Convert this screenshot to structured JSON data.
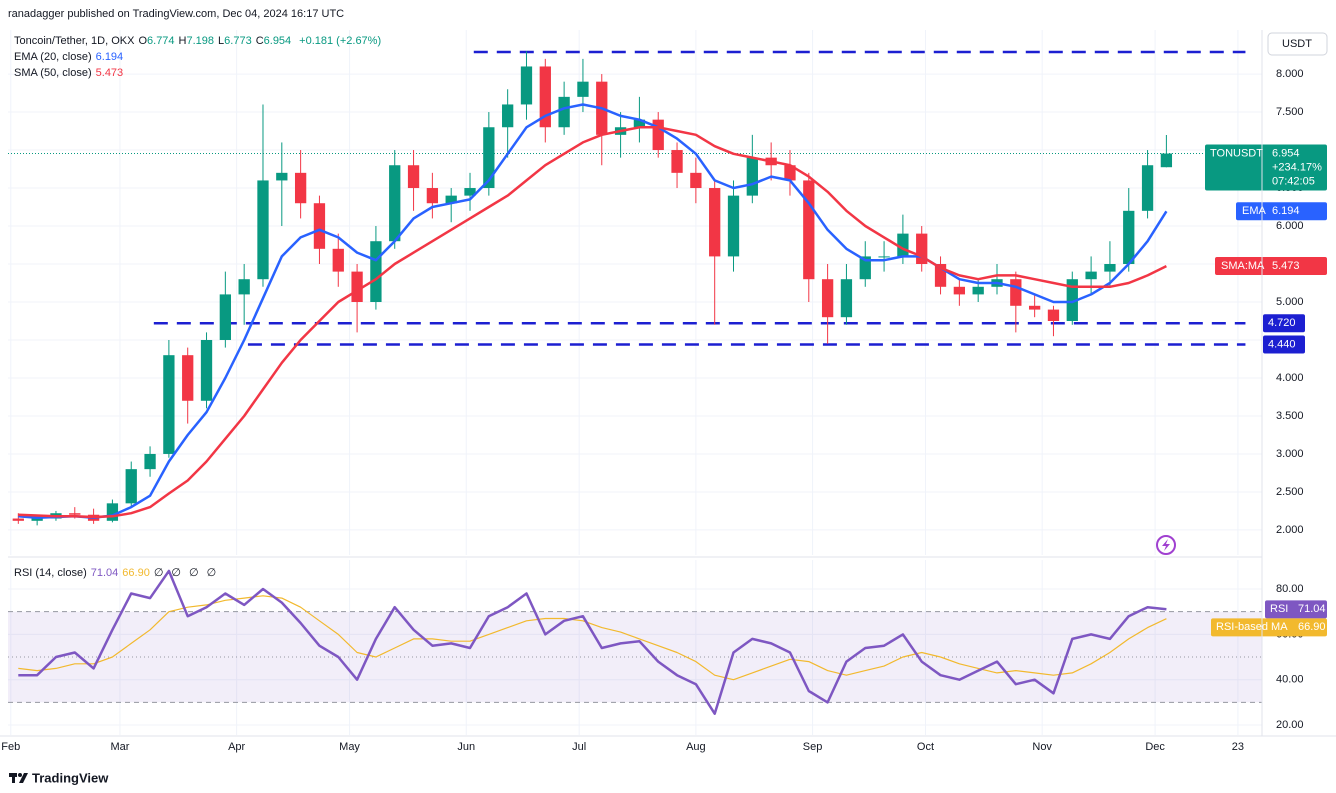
{
  "header": {
    "published": "ranadagger published on TradingView.com, Dec 04, 2024 16:17 UTC",
    "brand": "TradingView"
  },
  "chart_data": [
    {
      "type": "candlestick",
      "title": "Toncoin/Tether, 1D, OKX",
      "currency": "USDT",
      "ohlc_legend": [
        {
          "key": "O",
          "value": "6.774"
        },
        {
          "key": "H",
          "value": "7.198"
        },
        {
          "key": "L",
          "value": "6.773"
        },
        {
          "key": "C",
          "value": "6.954"
        }
      ],
      "change": "+0.181 (+2.67%)",
      "x": [
        2,
        7,
        12,
        17,
        22,
        27,
        32,
        37,
        42,
        47,
        52,
        57,
        62,
        67,
        72,
        77,
        82,
        87,
        92,
        97,
        102,
        107,
        112,
        117,
        122,
        127,
        132,
        137,
        142,
        147,
        152,
        157,
        162,
        167,
        172,
        177,
        182,
        187,
        192,
        197,
        202,
        207,
        212,
        217,
        222,
        227,
        232,
        237,
        242,
        247,
        252,
        257,
        262,
        267,
        272,
        277,
        282,
        287,
        292,
        297,
        302,
        307
      ],
      "open": [
        2.15,
        2.12,
        2.15,
        2.22,
        2.2,
        2.12,
        2.35,
        2.8,
        3.0,
        4.3,
        3.7,
        4.5,
        5.1,
        5.3,
        6.6,
        6.7,
        6.3,
        5.7,
        5.4,
        5.0,
        5.8,
        6.8,
        6.5,
        6.3,
        6.4,
        6.5,
        7.3,
        7.6,
        8.1,
        7.3,
        7.7,
        7.9,
        7.2,
        7.3,
        7.4,
        7.0,
        6.7,
        6.5,
        5.6,
        6.4,
        6.9,
        6.8,
        6.6,
        5.3,
        4.8,
        5.3,
        5.6,
        5.6,
        5.9,
        5.5,
        5.2,
        5.1,
        5.2,
        5.3,
        4.95,
        4.9,
        4.75,
        5.3,
        5.4,
        5.5,
        6.2,
        6.774
      ],
      "high": [
        2.22,
        2.2,
        2.25,
        2.3,
        2.28,
        2.4,
        2.9,
        3.1,
        4.5,
        4.4,
        4.6,
        5.4,
        5.5,
        7.6,
        7.1,
        7.0,
        6.4,
        5.9,
        5.5,
        6.0,
        7.0,
        7.0,
        6.7,
        6.5,
        6.7,
        7.5,
        7.8,
        8.3,
        8.2,
        7.9,
        8.2,
        8.0,
        7.5,
        7.7,
        7.5,
        7.1,
        6.9,
        6.6,
        6.6,
        7.2,
        7.1,
        7.0,
        6.7,
        5.5,
        5.5,
        5.8,
        5.8,
        6.15,
        6.0,
        5.6,
        5.3,
        5.3,
        5.5,
        5.4,
        5.1,
        4.95,
        5.4,
        5.6,
        5.8,
        6.5,
        7.0,
        7.198
      ],
      "low": [
        2.08,
        2.06,
        2.12,
        2.15,
        2.08,
        2.1,
        2.3,
        2.7,
        2.95,
        3.4,
        3.6,
        4.4,
        4.7,
        5.2,
        6.0,
        6.1,
        5.5,
        5.2,
        4.6,
        4.9,
        5.7,
        6.2,
        6.1,
        6.05,
        6.2,
        6.4,
        6.9,
        7.4,
        7.1,
        7.2,
        7.5,
        6.8,
        6.9,
        7.1,
        6.9,
        6.5,
        6.3,
        4.7,
        5.4,
        6.3,
        6.6,
        6.4,
        5.0,
        4.45,
        4.7,
        5.2,
        5.4,
        5.5,
        5.4,
        5.1,
        4.95,
        5.0,
        5.1,
        4.6,
        4.8,
        4.55,
        4.7,
        5.1,
        5.2,
        5.4,
        6.1,
        6.773
      ],
      "close": [
        2.12,
        2.15,
        2.22,
        2.2,
        2.12,
        2.35,
        2.8,
        3.0,
        4.3,
        3.7,
        4.5,
        5.1,
        5.3,
        6.6,
        6.7,
        6.3,
        5.7,
        5.4,
        5.0,
        5.8,
        6.8,
        6.5,
        6.3,
        6.4,
        6.5,
        7.3,
        7.6,
        8.1,
        7.3,
        7.7,
        7.9,
        7.2,
        7.3,
        7.4,
        7.0,
        6.7,
        6.5,
        5.6,
        6.4,
        6.9,
        6.8,
        6.6,
        5.3,
        4.8,
        5.3,
        5.6,
        5.6,
        5.9,
        5.5,
        5.2,
        5.1,
        5.2,
        5.3,
        4.95,
        4.9,
        4.75,
        5.3,
        5.4,
        5.5,
        6.2,
        6.8,
        6.954
      ],
      "up_color": "#089981",
      "down_color": "#f23645",
      "series": [
        {
          "name": "EMA (20, close)",
          "color": "#2962ff",
          "axis_label": "EMA",
          "axis_value": "6.194",
          "values": [
            2.18,
            2.16,
            2.17,
            2.18,
            2.16,
            2.19,
            2.3,
            2.45,
            2.9,
            3.25,
            3.55,
            4.0,
            4.5,
            5.05,
            5.6,
            5.85,
            5.95,
            5.85,
            5.65,
            5.55,
            5.8,
            6.1,
            6.25,
            6.3,
            6.35,
            6.6,
            6.95,
            7.3,
            7.45,
            7.55,
            7.6,
            7.55,
            7.45,
            7.4,
            7.3,
            7.15,
            6.95,
            6.6,
            6.5,
            6.55,
            6.65,
            6.6,
            6.3,
            5.95,
            5.7,
            5.55,
            5.55,
            5.6,
            5.6,
            5.45,
            5.3,
            5.25,
            5.25,
            5.2,
            5.1,
            5.0,
            5.0,
            5.1,
            5.25,
            5.5,
            5.8,
            6.194
          ]
        },
        {
          "name": "SMA (50, close)",
          "color": "#f23645",
          "axis_label": "SMA:MA",
          "axis_value": "5.473",
          "values": [
            2.2,
            2.19,
            2.18,
            2.18,
            2.17,
            2.18,
            2.22,
            2.3,
            2.48,
            2.65,
            2.9,
            3.2,
            3.5,
            3.85,
            4.2,
            4.5,
            4.75,
            5.0,
            5.15,
            5.3,
            5.5,
            5.65,
            5.8,
            5.95,
            6.1,
            6.25,
            6.4,
            6.6,
            6.8,
            6.95,
            7.1,
            7.2,
            7.25,
            7.3,
            7.3,
            7.25,
            7.2,
            7.05,
            6.95,
            6.9,
            6.85,
            6.8,
            6.65,
            6.45,
            6.2,
            6.0,
            5.85,
            5.7,
            5.6,
            5.45,
            5.35,
            5.3,
            5.35,
            5.35,
            5.3,
            5.25,
            5.2,
            5.2,
            5.2,
            5.25,
            5.35,
            5.473
          ]
        }
      ],
      "last_price": {
        "symbol": "TONUSDT",
        "price": "6.954",
        "change": "+234.17%",
        "countdown": "07:42:05"
      },
      "levels": [
        {
          "value": 8.29,
          "x": [
            123,
            328
          ]
        },
        {
          "value": 4.72,
          "label": "4.720",
          "x": [
            38,
            328
          ]
        },
        {
          "value": 4.44,
          "label": "4.440",
          "x": [
            63,
            328
          ]
        }
      ],
      "level_color": "#1c1fd1",
      "xlim": [
        -0.74,
        332.4
      ],
      "ylim": [
        1.67,
        8.58
      ],
      "yticks": [
        {
          "value": 2,
          "label": "2.000"
        },
        {
          "value": 2.5,
          "label": "2.500"
        },
        {
          "value": 3,
          "label": "3.000"
        },
        {
          "value": 3.5,
          "label": "3.500"
        },
        {
          "value": 4,
          "label": "4.000"
        },
        {
          "value": 4.5,
          "label": "4.500"
        },
        {
          "value": 5,
          "label": "5.000"
        },
        {
          "value": 5.5,
          "label": "5.500"
        },
        {
          "value": 6,
          "label": "6.000"
        },
        {
          "value": 6.5,
          "label": "6.500"
        },
        {
          "value": 7,
          "label": "7.000"
        },
        {
          "value": 7.5,
          "label": "7.500"
        },
        {
          "value": 8,
          "label": "8.000"
        }
      ],
      "grid": true
    },
    {
      "type": "line",
      "title": "RSI (14, close)",
      "extra_legend": [
        "∅",
        "∅",
        "∅",
        "∅"
      ],
      "series": [
        {
          "name": "RSI",
          "color": "#7e57c2",
          "axis_value": "71.04",
          "values": [
            42,
            42,
            50,
            52,
            45,
            62,
            78,
            76,
            88,
            68,
            72,
            78,
            73,
            80,
            74,
            65,
            55,
            50,
            40,
            58,
            72,
            62,
            55,
            56,
            54,
            68,
            72,
            78,
            60,
            66,
            68,
            54,
            56,
            57,
            48,
            42,
            38,
            25,
            52,
            58,
            56,
            52,
            35,
            30,
            48,
            54,
            55,
            60,
            48,
            42,
            40,
            44,
            48,
            38,
            40,
            34,
            58,
            60,
            58,
            68,
            72,
            71.04
          ]
        },
        {
          "name": "RSI-based MA",
          "color": "#f2b92e",
          "axis_value": "66.90",
          "values": [
            45,
            44,
            45,
            47,
            47,
            50,
            56,
            62,
            70,
            72,
            73,
            75,
            76,
            77,
            76,
            72,
            66,
            60,
            52,
            50,
            54,
            58,
            58,
            57,
            57,
            60,
            63,
            66,
            67,
            67,
            66,
            63,
            61,
            58,
            55,
            52,
            48,
            42,
            40,
            43,
            46,
            49,
            48,
            44,
            42,
            44,
            46,
            50,
            52,
            50,
            47,
            45,
            43,
            44,
            43,
            42,
            43,
            47,
            52,
            58,
            63,
            66.9
          ]
        }
      ],
      "bands": {
        "upper": 70,
        "middle": 50,
        "lower": 30
      },
      "ylim": [
        15.6,
        92.8
      ],
      "yticks": [
        {
          "value": 20,
          "label": "20.00"
        },
        {
          "value": 40,
          "label": "40.00"
        },
        {
          "value": 60,
          "label": "60.00"
        },
        {
          "value": 80,
          "label": "80.00"
        }
      ],
      "xticks": [
        {
          "value": 0,
          "label": "Feb"
        },
        {
          "value": 29,
          "label": "Mar"
        },
        {
          "value": 60,
          "label": "Apr"
        },
        {
          "value": 90,
          "label": "May"
        },
        {
          "value": 121,
          "label": "Jun"
        },
        {
          "value": 151,
          "label": "Jul"
        },
        {
          "value": 182,
          "label": "Aug"
        },
        {
          "value": 213,
          "label": "Sep"
        },
        {
          "value": 243,
          "label": "Oct"
        },
        {
          "value": 274,
          "label": "Nov"
        },
        {
          "value": 304,
          "label": "Dec"
        },
        {
          "value": 326,
          "label": "23"
        }
      ],
      "grid": true
    }
  ]
}
